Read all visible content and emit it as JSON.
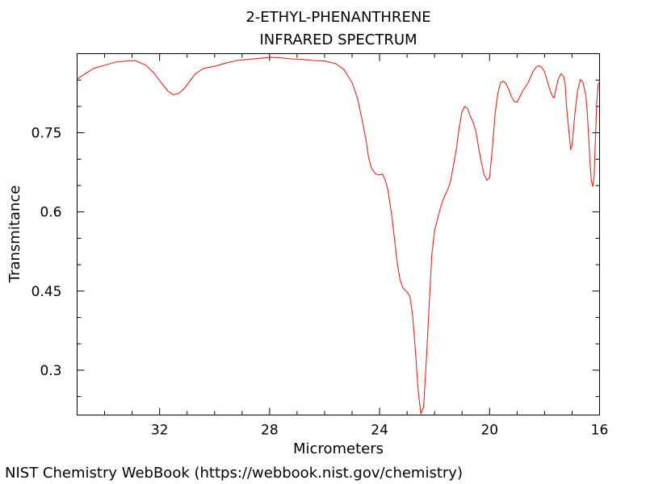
{
  "chart_data": {
    "type": "line",
    "title": "2-ETHYL-PHENANTHRENE",
    "subtitle": "INFRARED SPECTRUM",
    "xlabel": "Micrometers",
    "ylabel": "Transmitance",
    "x_reversed": true,
    "xlim": [
      35.0,
      16.0
    ],
    "ylim": [
      0.215,
      0.9
    ],
    "x_ticks": [
      32,
      28,
      24,
      20,
      16
    ],
    "x_tick_labels": [
      "32",
      "28",
      "24",
      "20",
      "16"
    ],
    "y_ticks": [
      0.75,
      0.6,
      0.45,
      0.3
    ],
    "y_tick_labels": [
      "0.75",
      "0.6",
      "0.45",
      "0.3"
    ],
    "line_color": "#e8231d",
    "grid": false,
    "series": [
      {
        "values": [
          [
            35.0,
            0.852
          ],
          [
            34.7,
            0.862
          ],
          [
            34.4,
            0.872
          ],
          [
            34.0,
            0.878
          ],
          [
            33.6,
            0.884
          ],
          [
            33.2,
            0.886
          ],
          [
            32.9,
            0.887
          ],
          [
            32.5,
            0.878
          ],
          [
            32.2,
            0.863
          ],
          [
            31.9,
            0.842
          ],
          [
            31.7,
            0.829
          ],
          [
            31.5,
            0.822
          ],
          [
            31.3,
            0.825
          ],
          [
            31.1,
            0.834
          ],
          [
            30.9,
            0.848
          ],
          [
            30.7,
            0.862
          ],
          [
            30.4,
            0.872
          ],
          [
            30.0,
            0.876
          ],
          [
            29.6,
            0.882
          ],
          [
            29.2,
            0.887
          ],
          [
            28.8,
            0.889
          ],
          [
            28.4,
            0.891
          ],
          [
            28.0,
            0.893
          ],
          [
            27.6,
            0.892
          ],
          [
            27.2,
            0.89
          ],
          [
            26.8,
            0.889
          ],
          [
            26.4,
            0.887
          ],
          [
            26.0,
            0.886
          ],
          [
            25.6,
            0.881
          ],
          [
            25.3,
            0.87
          ],
          [
            25.0,
            0.845
          ],
          [
            24.8,
            0.815
          ],
          [
            24.6,
            0.765
          ],
          [
            24.5,
            0.738
          ],
          [
            24.4,
            0.703
          ],
          [
            24.3,
            0.683
          ],
          [
            24.15,
            0.672
          ],
          [
            24.0,
            0.67
          ],
          [
            23.9,
            0.672
          ],
          [
            23.8,
            0.661
          ],
          [
            23.7,
            0.642
          ],
          [
            23.55,
            0.591
          ],
          [
            23.45,
            0.545
          ],
          [
            23.35,
            0.5
          ],
          [
            23.25,
            0.47
          ],
          [
            23.15,
            0.456
          ],
          [
            23.0,
            0.448
          ],
          [
            22.9,
            0.44
          ],
          [
            22.8,
            0.405
          ],
          [
            22.7,
            0.34
          ],
          [
            22.6,
            0.262
          ],
          [
            22.5,
            0.217
          ],
          [
            22.4,
            0.23
          ],
          [
            22.3,
            0.32
          ],
          [
            22.2,
            0.42
          ],
          [
            22.1,
            0.52
          ],
          [
            22.0,
            0.565
          ],
          [
            21.9,
            0.585
          ],
          [
            21.8,
            0.605
          ],
          [
            21.7,
            0.622
          ],
          [
            21.6,
            0.634
          ],
          [
            21.5,
            0.645
          ],
          [
            21.4,
            0.663
          ],
          [
            21.3,
            0.692
          ],
          [
            21.2,
            0.722
          ],
          [
            21.1,
            0.762
          ],
          [
            21.0,
            0.79
          ],
          [
            20.9,
            0.8
          ],
          [
            20.8,
            0.796
          ],
          [
            20.7,
            0.781
          ],
          [
            20.6,
            0.77
          ],
          [
            20.5,
            0.753
          ],
          [
            20.4,
            0.722
          ],
          [
            20.3,
            0.694
          ],
          [
            20.2,
            0.671
          ],
          [
            20.1,
            0.66
          ],
          [
            20.0,
            0.665
          ],
          [
            19.9,
            0.72
          ],
          [
            19.8,
            0.785
          ],
          [
            19.7,
            0.825
          ],
          [
            19.6,
            0.845
          ],
          [
            19.5,
            0.848
          ],
          [
            19.4,
            0.843
          ],
          [
            19.3,
            0.832
          ],
          [
            19.2,
            0.818
          ],
          [
            19.1,
            0.809
          ],
          [
            19.0,
            0.808
          ],
          [
            18.9,
            0.818
          ],
          [
            18.8,
            0.829
          ],
          [
            18.6,
            0.845
          ],
          [
            18.5,
            0.857
          ],
          [
            18.4,
            0.868
          ],
          [
            18.3,
            0.875
          ],
          [
            18.2,
            0.877
          ],
          [
            18.1,
            0.874
          ],
          [
            18.0,
            0.865
          ],
          [
            17.9,
            0.848
          ],
          [
            17.8,
            0.83
          ],
          [
            17.7,
            0.818
          ],
          [
            17.65,
            0.816
          ],
          [
            17.6,
            0.83
          ],
          [
            17.5,
            0.852
          ],
          [
            17.4,
            0.862
          ],
          [
            17.3,
            0.856
          ],
          [
            17.25,
            0.842
          ],
          [
            17.2,
            0.8
          ],
          [
            17.1,
            0.745
          ],
          [
            17.05,
            0.718
          ],
          [
            17.0,
            0.726
          ],
          [
            16.9,
            0.785
          ],
          [
            16.8,
            0.83
          ],
          [
            16.7,
            0.851
          ],
          [
            16.6,
            0.845
          ],
          [
            16.5,
            0.82
          ],
          [
            16.45,
            0.789
          ],
          [
            16.4,
            0.745
          ],
          [
            16.35,
            0.695
          ],
          [
            16.3,
            0.66
          ],
          [
            16.25,
            0.648
          ],
          [
            16.2,
            0.665
          ],
          [
            16.15,
            0.74
          ],
          [
            16.1,
            0.81
          ],
          [
            16.05,
            0.842
          ],
          [
            16.0,
            0.846
          ],
          [
            15.95,
            0.842
          ],
          [
            15.9,
            0.828
          ],
          [
            15.85,
            0.812
          ],
          [
            15.8,
            0.806
          ]
        ]
      }
    ]
  },
  "credit": "NIST Chemistry WebBook (https://webbook.nist.gov/chemistry)"
}
